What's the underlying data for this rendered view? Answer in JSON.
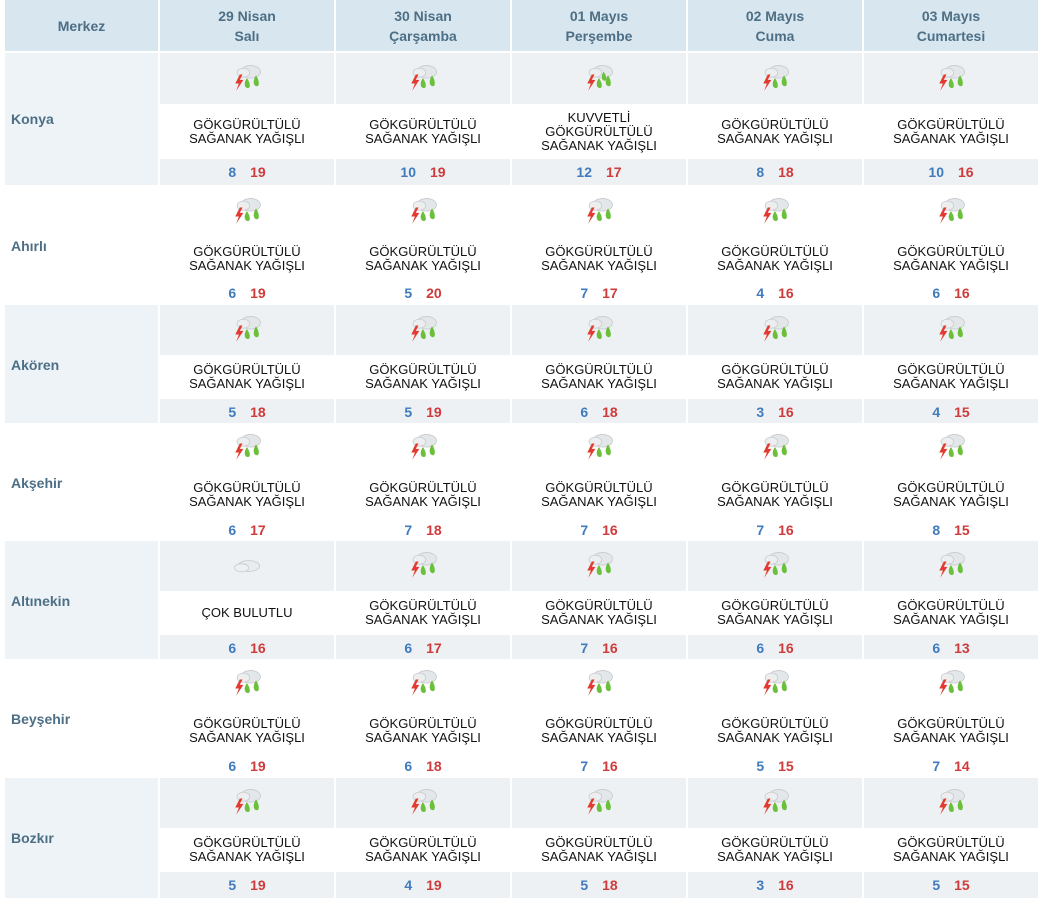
{
  "header": {
    "merkez": "Merkez",
    "days": [
      {
        "date": "29 Nisan",
        "weekday": "Salı"
      },
      {
        "date": "30 Nisan",
        "weekday": "Çarşamba"
      },
      {
        "date": "01 Mayıs",
        "weekday": "Perşembe"
      },
      {
        "date": "02 Mayıs",
        "weekday": "Cuma"
      },
      {
        "date": "03 Mayıs",
        "weekday": "Cumartesi"
      }
    ]
  },
  "rows": [
    {
      "city": "Konya",
      "days": [
        {
          "icon": "thunder-rain-icon",
          "desc1": "GÖKGÜRÜLTÜLÜ",
          "desc2": "SAĞANAK YAĞIŞLI",
          "desc3": "",
          "min": "8",
          "max": "19"
        },
        {
          "icon": "thunder-rain-icon",
          "desc1": "GÖKGÜRÜLTÜLÜ",
          "desc2": "SAĞANAK YAĞIŞLI",
          "desc3": "",
          "min": "10",
          "max": "19"
        },
        {
          "icon": "heavy-thunder-rain-icon",
          "desc1": "KUVVETLİ",
          "desc2": "GÖKGÜRÜLTÜLÜ",
          "desc3": "SAĞANAK YAĞIŞLI",
          "min": "12",
          "max": "17"
        },
        {
          "icon": "thunder-rain-icon",
          "desc1": "GÖKGÜRÜLTÜLÜ",
          "desc2": "SAĞANAK YAĞIŞLI",
          "desc3": "",
          "min": "8",
          "max": "18"
        },
        {
          "icon": "thunder-rain-icon",
          "desc1": "GÖKGÜRÜLTÜLÜ",
          "desc2": "SAĞANAK YAĞIŞLI",
          "desc3": "",
          "min": "10",
          "max": "16"
        }
      ]
    },
    {
      "city": "Ahırlı",
      "days": [
        {
          "icon": "thunder-rain-icon",
          "desc1": "GÖKGÜRÜLTÜLÜ",
          "desc2": "SAĞANAK YAĞIŞLI",
          "desc3": "",
          "min": "6",
          "max": "19"
        },
        {
          "icon": "thunder-rain-icon",
          "desc1": "GÖKGÜRÜLTÜLÜ",
          "desc2": "SAĞANAK YAĞIŞLI",
          "desc3": "",
          "min": "5",
          "max": "20"
        },
        {
          "icon": "thunder-rain-icon",
          "desc1": "GÖKGÜRÜLTÜLÜ",
          "desc2": "SAĞANAK YAĞIŞLI",
          "desc3": "",
          "min": "7",
          "max": "17"
        },
        {
          "icon": "thunder-rain-icon",
          "desc1": "GÖKGÜRÜLTÜLÜ",
          "desc2": "SAĞANAK YAĞIŞLI",
          "desc3": "",
          "min": "4",
          "max": "16"
        },
        {
          "icon": "thunder-rain-icon",
          "desc1": "GÖKGÜRÜLTÜLÜ",
          "desc2": "SAĞANAK YAĞIŞLI",
          "desc3": "",
          "min": "6",
          "max": "16"
        }
      ]
    },
    {
      "city": "Akören",
      "days": [
        {
          "icon": "thunder-rain-icon",
          "desc1": "GÖKGÜRÜLTÜLÜ",
          "desc2": "SAĞANAK YAĞIŞLI",
          "desc3": "",
          "min": "5",
          "max": "18"
        },
        {
          "icon": "thunder-rain-icon",
          "desc1": "GÖKGÜRÜLTÜLÜ",
          "desc2": "SAĞANAK YAĞIŞLI",
          "desc3": "",
          "min": "5",
          "max": "19"
        },
        {
          "icon": "thunder-rain-icon",
          "desc1": "GÖKGÜRÜLTÜLÜ",
          "desc2": "SAĞANAK YAĞIŞLI",
          "desc3": "",
          "min": "6",
          "max": "18"
        },
        {
          "icon": "thunder-rain-icon",
          "desc1": "GÖKGÜRÜLTÜLÜ",
          "desc2": "SAĞANAK YAĞIŞLI",
          "desc3": "",
          "min": "3",
          "max": "16"
        },
        {
          "icon": "thunder-rain-icon",
          "desc1": "GÖKGÜRÜLTÜLÜ",
          "desc2": "SAĞANAK YAĞIŞLI",
          "desc3": "",
          "min": "4",
          "max": "15"
        }
      ]
    },
    {
      "city": "Akşehir",
      "days": [
        {
          "icon": "thunder-rain-icon",
          "desc1": "GÖKGÜRÜLTÜLÜ",
          "desc2": "SAĞANAK YAĞIŞLI",
          "desc3": "",
          "min": "6",
          "max": "17"
        },
        {
          "icon": "thunder-rain-icon",
          "desc1": "GÖKGÜRÜLTÜLÜ",
          "desc2": "SAĞANAK YAĞIŞLI",
          "desc3": "",
          "min": "7",
          "max": "18"
        },
        {
          "icon": "thunder-rain-icon",
          "desc1": "GÖKGÜRÜLTÜLÜ",
          "desc2": "SAĞANAK YAĞIŞLI",
          "desc3": "",
          "min": "7",
          "max": "16"
        },
        {
          "icon": "thunder-rain-icon",
          "desc1": "GÖKGÜRÜLTÜLÜ",
          "desc2": "SAĞANAK YAĞIŞLI",
          "desc3": "",
          "min": "7",
          "max": "16"
        },
        {
          "icon": "thunder-rain-icon",
          "desc1": "GÖKGÜRÜLTÜLÜ",
          "desc2": "SAĞANAK YAĞIŞLI",
          "desc3": "",
          "min": "8",
          "max": "15"
        }
      ]
    },
    {
      "city": "Altınekin",
      "days": [
        {
          "icon": "cloudy-icon",
          "desc1": "ÇOK BULUTLU",
          "desc2": "",
          "desc3": "",
          "min": "6",
          "max": "16"
        },
        {
          "icon": "thunder-rain-icon",
          "desc1": "GÖKGÜRÜLTÜLÜ",
          "desc2": "SAĞANAK YAĞIŞLI",
          "desc3": "",
          "min": "6",
          "max": "17"
        },
        {
          "icon": "thunder-rain-icon",
          "desc1": "GÖKGÜRÜLTÜLÜ",
          "desc2": "SAĞANAK YAĞIŞLI",
          "desc3": "",
          "min": "7",
          "max": "16"
        },
        {
          "icon": "thunder-rain-icon",
          "desc1": "GÖKGÜRÜLTÜLÜ",
          "desc2": "SAĞANAK YAĞIŞLI",
          "desc3": "",
          "min": "6",
          "max": "16"
        },
        {
          "icon": "thunder-rain-icon",
          "desc1": "GÖKGÜRÜLTÜLÜ",
          "desc2": "SAĞANAK YAĞIŞLI",
          "desc3": "",
          "min": "6",
          "max": "13"
        }
      ]
    },
    {
      "city": "Beyşehir",
      "days": [
        {
          "icon": "thunder-rain-icon",
          "desc1": "GÖKGÜRÜLTÜLÜ",
          "desc2": "SAĞANAK YAĞIŞLI",
          "desc3": "",
          "min": "6",
          "max": "19"
        },
        {
          "icon": "thunder-rain-icon",
          "desc1": "GÖKGÜRÜLTÜLÜ",
          "desc2": "SAĞANAK YAĞIŞLI",
          "desc3": "",
          "min": "6",
          "max": "18"
        },
        {
          "icon": "thunder-rain-icon",
          "desc1": "GÖKGÜRÜLTÜLÜ",
          "desc2": "SAĞANAK YAĞIŞLI",
          "desc3": "",
          "min": "7",
          "max": "16"
        },
        {
          "icon": "thunder-rain-icon",
          "desc1": "GÖKGÜRÜLTÜLÜ",
          "desc2": "SAĞANAK YAĞIŞLI",
          "desc3": "",
          "min": "5",
          "max": "15"
        },
        {
          "icon": "thunder-rain-icon",
          "desc1": "GÖKGÜRÜLTÜLÜ",
          "desc2": "SAĞANAK YAĞIŞLI",
          "desc3": "",
          "min": "7",
          "max": "14"
        }
      ]
    },
    {
      "city": "Bozkır",
      "days": [
        {
          "icon": "thunder-rain-icon",
          "desc1": "GÖKGÜRÜLTÜLÜ",
          "desc2": "SAĞANAK YAĞIŞLI",
          "desc3": "",
          "min": "5",
          "max": "19"
        },
        {
          "icon": "thunder-rain-icon",
          "desc1": "GÖKGÜRÜLTÜLÜ",
          "desc2": "SAĞANAK YAĞIŞLI",
          "desc3": "",
          "min": "4",
          "max": "19"
        },
        {
          "icon": "thunder-rain-icon",
          "desc1": "GÖKGÜRÜLTÜLÜ",
          "desc2": "SAĞANAK YAĞIŞLI",
          "desc3": "",
          "min": "5",
          "max": "18"
        },
        {
          "icon": "thunder-rain-icon",
          "desc1": "GÖKGÜRÜLTÜLÜ",
          "desc2": "SAĞANAK YAĞIŞLI",
          "desc3": "",
          "min": "3",
          "max": "16"
        },
        {
          "icon": "thunder-rain-icon",
          "desc1": "GÖKGÜRÜLTÜLÜ",
          "desc2": "SAĞANAK YAĞIŞLI",
          "desc3": "",
          "min": "5",
          "max": "15"
        }
      ]
    }
  ],
  "colors": {
    "header_bg": "#d8e6ef",
    "header_text": "#4d6f86",
    "min_temp": "#3f7bbd",
    "max_temp": "#d03a3a",
    "cloud": "#c9ced3",
    "rain": "#6cbf3a",
    "lightning": "#e23a2e"
  }
}
